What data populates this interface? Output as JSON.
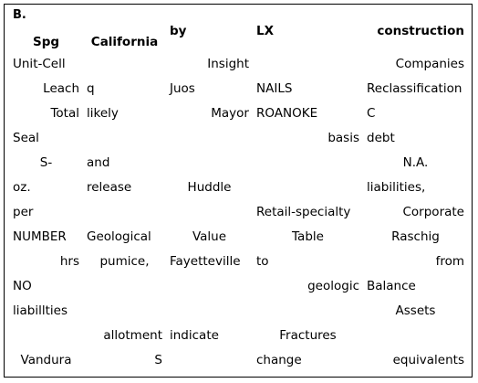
{
  "section_label": "B.",
  "headers": [
    "Spg",
    "California",
    "by",
    "LX",
    "construction"
  ],
  "rows": [
    [
      "Unit-Cell",
      "",
      "Insight",
      "",
      "Companies"
    ],
    [
      "Leach",
      "q",
      "Juos",
      "NAILS",
      "Reclassification"
    ],
    [
      "Total",
      "likely",
      "Mayor",
      "ROANOKE",
      "C"
    ],
    [
      "Seal",
      "",
      "",
      "basis",
      "debt"
    ],
    [
      "S-",
      "and",
      "",
      "",
      "N.A."
    ],
    [
      "oz.",
      "release",
      "Huddle",
      "",
      "liabilities,"
    ],
    [
      "per",
      "",
      "",
      "Retail-specialty",
      "Corporate"
    ],
    [
      "NUMBER",
      "Geological",
      "Value",
      "Table",
      "Raschig"
    ],
    [
      "hrs",
      "pumice,",
      "Fayetteville",
      "to",
      "from"
    ],
    [
      "NO",
      "",
      "",
      "geologic",
      "Balance"
    ],
    [
      "liabillties",
      "",
      "",
      "",
      "Assets"
    ],
    [
      "",
      "allotment",
      "indicate",
      "Fractures",
      ""
    ],
    [
      "Vandura",
      "S",
      "",
      "change",
      "equivalents"
    ]
  ]
}
